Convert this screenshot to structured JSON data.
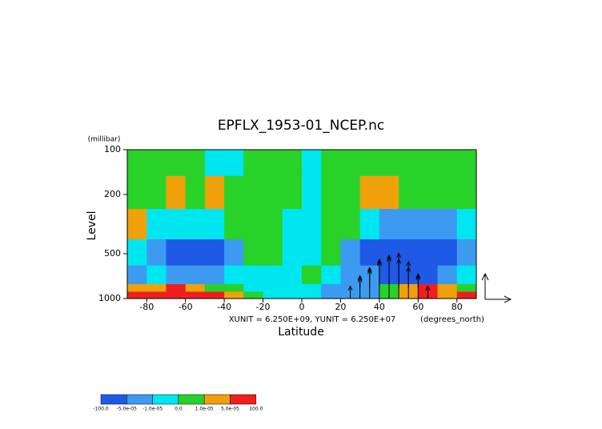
{
  "chart_data": {
    "type": "contour",
    "title": "EPFLX_1953-01_NCEP.nc",
    "y_unit_label": "(millibar)",
    "ylabel": "Level",
    "xlabel": "Latitude",
    "x_unit_label": "(degrees_north)",
    "vector_scale_text": "XUNIT = 6.250E+09, YUNIT = 6.250E+07",
    "yunit": 62500000,
    "xlim": [
      -90,
      90
    ],
    "xticks": [
      -80,
      -60,
      -40,
      -20,
      0,
      20,
      40,
      60,
      80
    ],
    "ylim": [
      1000,
      100
    ],
    "yticks": [
      100,
      200,
      500,
      1000
    ],
    "log_y": true,
    "x": [
      -85,
      -75,
      -65,
      -55,
      -45,
      -35,
      -25,
      -15,
      -5,
      5,
      15,
      25,
      35,
      45,
      55,
      65,
      75,
      85
    ],
    "level_edges": [
      100,
      150,
      250,
      400,
      600,
      800,
      900,
      1000
    ],
    "z": [
      [
        5e-06,
        5e-06,
        5e-06,
        5e-06,
        -5e-06,
        -5e-06,
        5e-06,
        5e-06,
        5e-06,
        -5e-06,
        5e-06,
        5e-06,
        5e-06,
        5e-06,
        5e-06,
        5e-06,
        5e-06,
        5e-06
      ],
      [
        5e-06,
        5e-06,
        3e-05,
        5e-06,
        3e-05,
        5e-06,
        5e-06,
        5e-06,
        5e-06,
        -5e-06,
        5e-06,
        5e-06,
        3e-05,
        3e-05,
        5e-06,
        5e-06,
        5e-06,
        5e-06
      ],
      [
        3e-05,
        -5e-06,
        -5e-06,
        -5e-06,
        -5e-06,
        5e-06,
        5e-06,
        5e-06,
        -5e-06,
        -5e-06,
        5e-06,
        5e-06,
        -5e-06,
        -3e-05,
        -3e-05,
        -3e-05,
        -3e-05,
        -5e-06
      ],
      [
        -5e-06,
        -3e-05,
        -8e-05,
        -8e-05,
        -8e-05,
        -3e-05,
        5e-06,
        5e-06,
        -5e-06,
        -5e-06,
        5e-06,
        -3e-05,
        -8e-05,
        -8e-05,
        -8e-05,
        -8e-05,
        -8e-05,
        -3e-05
      ],
      [
        -3e-05,
        -5e-06,
        -3e-05,
        -3e-05,
        -3e-05,
        -5e-06,
        -5e-06,
        -5e-06,
        -5e-06,
        5e-06,
        -5e-06,
        -3e-05,
        -3e-05,
        -8e-05,
        -8e-05,
        -8e-05,
        -3e-05,
        -5e-06
      ],
      [
        3e-05,
        3e-05,
        8e-05,
        3e-05,
        5e-06,
        5e-06,
        -5e-06,
        -5e-06,
        -5e-06,
        -5e-06,
        -3e-05,
        -3e-05,
        -3e-05,
        5e-06,
        3e-05,
        8e-05,
        3e-05,
        5e-06
      ],
      [
        8e-05,
        8e-05,
        8e-05,
        8e-05,
        8e-05,
        3e-05,
        5e-06,
        -5e-06,
        -5e-06,
        -5e-06,
        -3e-05,
        -3e-05,
        -3e-05,
        5e-06,
        3e-05,
        8e-05,
        3e-05,
        8e-05
      ]
    ],
    "levels": [
      {
        "value": -100,
        "label": "-100.0"
      },
      {
        "value": -5e-05,
        "label": "-5.0e-05"
      },
      {
        "value": -1e-05,
        "label": "-1.0e-05"
      },
      {
        "value": 0,
        "label": "0.0"
      },
      {
        "value": 1e-05,
        "label": "1.0e-05"
      },
      {
        "value": 5e-05,
        "label": "5.0e-05"
      },
      {
        "value": 100,
        "label": "100.0"
      }
    ],
    "colors": [
      "#1e5ae6",
      "#3c9bf0",
      "#00e6f0",
      "#28d228",
      "#f0a00a",
      "#f01e1e"
    ],
    "vectors": {
      "x": [
        25,
        30,
        35,
        40,
        45,
        50,
        55,
        60,
        65,
        30,
        35,
        40,
        45,
        50,
        55,
        60
      ],
      "y": [
        1000,
        1000,
        1000,
        1000,
        1000,
        1000,
        1000,
        1000,
        1000,
        850,
        850,
        850,
        850,
        850,
        850,
        850
      ],
      "v": [
        30000000,
        50000000,
        70000000,
        90000000,
        100000000,
        110000000,
        90000000,
        60000000,
        30000000,
        30000000,
        50000000,
        70000000,
        80000000,
        70000000,
        50000000,
        30000000
      ]
    }
  }
}
